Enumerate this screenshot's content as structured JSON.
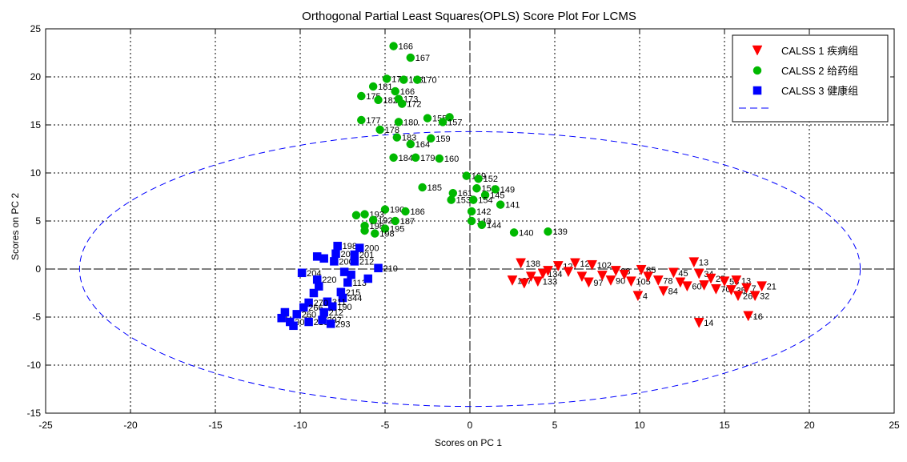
{
  "chart_data": {
    "type": "scatter",
    "title": "Orthogonal Partial Least Squares(OPLS) Score Plot For LCMS",
    "xlabel": "Scores on PC 1",
    "ylabel": "Scores on PC 2",
    "xlim": [
      -25,
      25
    ],
    "ylim": [
      -15,
      25
    ],
    "xticks": [
      -25,
      -20,
      -15,
      -10,
      -5,
      0,
      5,
      10,
      15,
      20,
      25
    ],
    "yticks": [
      -15,
      -10,
      -5,
      0,
      5,
      10,
      15,
      20,
      25
    ],
    "grid": true,
    "legend_position": "top-right",
    "ellipse": {
      "center": [
        0,
        0
      ],
      "rx": 23,
      "ry": 14.3
    },
    "series": [
      {
        "name": "CALSS 1 疾病组",
        "marker": "triangle-down",
        "color": "#ff0000",
        "points": [
          {
            "x": 3.0,
            "y": 0.6,
            "label": "138"
          },
          {
            "x": 2.5,
            "y": -1.2,
            "label": "137"
          },
          {
            "x": 3.2,
            "y": -1.5,
            "label": ""
          },
          {
            "x": 3.6,
            "y": -0.8,
            "label": ""
          },
          {
            "x": 4.0,
            "y": -1.3,
            "label": "133"
          },
          {
            "x": 4.3,
            "y": -0.5,
            "label": "134"
          },
          {
            "x": 4.6,
            "y": -0.2,
            "label": ""
          },
          {
            "x": 5.2,
            "y": 0.3,
            "label": "127"
          },
          {
            "x": 6.2,
            "y": 0.6,
            "label": "128"
          },
          {
            "x": 5.8,
            "y": -0.3,
            "label": ""
          },
          {
            "x": 6.6,
            "y": -0.8,
            "label": ""
          },
          {
            "x": 7.2,
            "y": 0.4,
            "label": "102"
          },
          {
            "x": 7.0,
            "y": -1.4,
            "label": "97"
          },
          {
            "x": 7.8,
            "y": -0.7,
            "label": ""
          },
          {
            "x": 8.3,
            "y": -1.2,
            "label": "90"
          },
          {
            "x": 8.6,
            "y": -0.2,
            "label": "98"
          },
          {
            "x": 9.1,
            "y": -0.6,
            "label": ""
          },
          {
            "x": 9.5,
            "y": -1.3,
            "label": "105"
          },
          {
            "x": 10.1,
            "y": -0.1,
            "label": "85"
          },
          {
            "x": 10.5,
            "y": -0.8,
            "label": ""
          },
          {
            "x": 9.9,
            "y": -2.8,
            "label": "4"
          },
          {
            "x": 11.1,
            "y": -1.2,
            "label": "78"
          },
          {
            "x": 11.4,
            "y": -2.3,
            "label": "84"
          },
          {
            "x": 12.0,
            "y": -0.4,
            "label": "45"
          },
          {
            "x": 12.4,
            "y": -1.4,
            "label": ""
          },
          {
            "x": 12.8,
            "y": -1.8,
            "label": "60"
          },
          {
            "x": 13.2,
            "y": 0.7,
            "label": "13"
          },
          {
            "x": 13.5,
            "y": -0.5,
            "label": "34"
          },
          {
            "x": 13.8,
            "y": -1.7,
            "label": ""
          },
          {
            "x": 14.2,
            "y": -1.0,
            "label": "25"
          },
          {
            "x": 14.5,
            "y": -2.1,
            "label": "70"
          },
          {
            "x": 15.0,
            "y": -1.3,
            "label": "56"
          },
          {
            "x": 15.4,
            "y": -2.2,
            "label": "35"
          },
          {
            "x": 15.7,
            "y": -1.2,
            "label": "13"
          },
          {
            "x": 15.8,
            "y": -2.8,
            "label": "26"
          },
          {
            "x": 16.3,
            "y": -2.0,
            "label": "7"
          },
          {
            "x": 16.8,
            "y": -2.8,
            "label": "32"
          },
          {
            "x": 17.2,
            "y": -1.8,
            "label": "21"
          },
          {
            "x": 16.4,
            "y": -4.9,
            "label": "16"
          },
          {
            "x": 13.5,
            "y": -5.6,
            "label": "14"
          }
        ]
      },
      {
        "name": "CALSS 2 给药组",
        "marker": "circle",
        "color": "#00b800",
        "points": [
          {
            "x": -4.5,
            "y": 23.2,
            "label": "166"
          },
          {
            "x": -3.5,
            "y": 22.0,
            "label": "167"
          },
          {
            "x": -4.9,
            "y": 19.8,
            "label": "171"
          },
          {
            "x": -3.9,
            "y": 19.7,
            "label": "168"
          },
          {
            "x": -3.1,
            "y": 19.7,
            "label": "170"
          },
          {
            "x": -5.7,
            "y": 19.0,
            "label": "181"
          },
          {
            "x": -4.4,
            "y": 18.5,
            "label": "166"
          },
          {
            "x": -6.4,
            "y": 18.0,
            "label": "175"
          },
          {
            "x": -5.4,
            "y": 17.6,
            "label": "182"
          },
          {
            "x": -4.2,
            "y": 17.7,
            "label": "173"
          },
          {
            "x": -4.0,
            "y": 17.2,
            "label": "172"
          },
          {
            "x": -2.5,
            "y": 15.7,
            "label": "155"
          },
          {
            "x": -1.2,
            "y": 15.8,
            "label": ""
          },
          {
            "x": -1.6,
            "y": 15.3,
            "label": "157"
          },
          {
            "x": -6.4,
            "y": 15.5,
            "label": "177"
          },
          {
            "x": -4.2,
            "y": 15.3,
            "label": "180"
          },
          {
            "x": -5.3,
            "y": 14.5,
            "label": "178"
          },
          {
            "x": -4.3,
            "y": 13.7,
            "label": "183"
          },
          {
            "x": -2.3,
            "y": 13.6,
            "label": "159"
          },
          {
            "x": -3.5,
            "y": 13.0,
            "label": "164"
          },
          {
            "x": -4.5,
            "y": 11.6,
            "label": "184"
          },
          {
            "x": -3.2,
            "y": 11.6,
            "label": "179"
          },
          {
            "x": -1.8,
            "y": 11.5,
            "label": "160"
          },
          {
            "x": -0.2,
            "y": 9.7,
            "label": "169"
          },
          {
            "x": 0.5,
            "y": 9.4,
            "label": "152"
          },
          {
            "x": -2.8,
            "y": 8.5,
            "label": "185"
          },
          {
            "x": 0.4,
            "y": 8.4,
            "label": "151"
          },
          {
            "x": 1.5,
            "y": 8.3,
            "label": "149"
          },
          {
            "x": -1.0,
            "y": 7.9,
            "label": "161"
          },
          {
            "x": 0.9,
            "y": 7.7,
            "label": "145"
          },
          {
            "x": -1.1,
            "y": 7.2,
            "label": "153"
          },
          {
            "x": 0.2,
            "y": 7.2,
            "label": "154"
          },
          {
            "x": 1.8,
            "y": 6.7,
            "label": "141"
          },
          {
            "x": -5.0,
            "y": 6.2,
            "label": "190"
          },
          {
            "x": -3.8,
            "y": 6.0,
            "label": "186"
          },
          {
            "x": 0.1,
            "y": 6.0,
            "label": "142"
          },
          {
            "x": -6.7,
            "y": 5.6,
            "label": ""
          },
          {
            "x": -6.2,
            "y": 5.7,
            "label": "193"
          },
          {
            "x": -5.7,
            "y": 5.1,
            "label": "192"
          },
          {
            "x": -4.4,
            "y": 5.0,
            "label": "187"
          },
          {
            "x": 0.1,
            "y": 5.0,
            "label": "143"
          },
          {
            "x": 0.7,
            "y": 4.6,
            "label": "144"
          },
          {
            "x": -6.2,
            "y": 4.5,
            "label": "198"
          },
          {
            "x": -5.0,
            "y": 4.2,
            "label": "195"
          },
          {
            "x": -5.6,
            "y": 3.7,
            "label": "198"
          },
          {
            "x": -6.2,
            "y": 4.0,
            "label": ""
          },
          {
            "x": 2.6,
            "y": 3.8,
            "label": "140"
          },
          {
            "x": 4.6,
            "y": 3.9,
            "label": "139"
          }
        ]
      },
      {
        "name": "CALSS 3 健康组",
        "marker": "square",
        "color": "#0000ff",
        "points": [
          {
            "x": -7.8,
            "y": 2.4,
            "label": "198"
          },
          {
            "x": -6.5,
            "y": 2.2,
            "label": "200"
          },
          {
            "x": -7.9,
            "y": 1.6,
            "label": "207"
          },
          {
            "x": -6.8,
            "y": 1.5,
            "label": "201"
          },
          {
            "x": -8.6,
            "y": 1.1,
            "label": ""
          },
          {
            "x": -8.0,
            "y": 0.8,
            "label": "200"
          },
          {
            "x": -6.8,
            "y": 0.8,
            "label": "212"
          },
          {
            "x": -9.0,
            "y": 1.3,
            "label": ""
          },
          {
            "x": -5.4,
            "y": 0.1,
            "label": "210"
          },
          {
            "x": -9.9,
            "y": -0.4,
            "label": "204"
          },
          {
            "x": -9.0,
            "y": -1.1,
            "label": "220"
          },
          {
            "x": -7.2,
            "y": -1.4,
            "label": "113"
          },
          {
            "x": -7.6,
            "y": -2.4,
            "label": "215"
          },
          {
            "x": -7.5,
            "y": -3.0,
            "label": "344"
          },
          {
            "x": -8.4,
            "y": -3.4,
            "label": "311"
          },
          {
            "x": -8.1,
            "y": -3.9,
            "label": "190"
          },
          {
            "x": -9.5,
            "y": -3.5,
            "label": "270"
          },
          {
            "x": -9.8,
            "y": -4.0,
            "label": "266"
          },
          {
            "x": -8.6,
            "y": -4.5,
            "label": "212"
          },
          {
            "x": -10.2,
            "y": -4.7,
            "label": "260"
          },
          {
            "x": -10.6,
            "y": -5.5,
            "label": "301"
          },
          {
            "x": -9.5,
            "y": -5.5,
            "label": "210"
          },
          {
            "x": -8.7,
            "y": -5.3,
            "label": "297"
          },
          {
            "x": -8.2,
            "y": -5.7,
            "label": "293"
          },
          {
            "x": -10.9,
            "y": -4.5,
            "label": ""
          },
          {
            "x": -11.1,
            "y": -5.1,
            "label": ""
          },
          {
            "x": -10.4,
            "y": -5.9,
            "label": ""
          },
          {
            "x": -9.2,
            "y": -2.5,
            "label": ""
          },
          {
            "x": -8.9,
            "y": -1.8,
            "label": ""
          },
          {
            "x": -7.0,
            "y": -0.6,
            "label": ""
          },
          {
            "x": -6.0,
            "y": -1.0,
            "label": ""
          },
          {
            "x": -7.4,
            "y": -0.3,
            "label": ""
          }
        ]
      }
    ]
  }
}
